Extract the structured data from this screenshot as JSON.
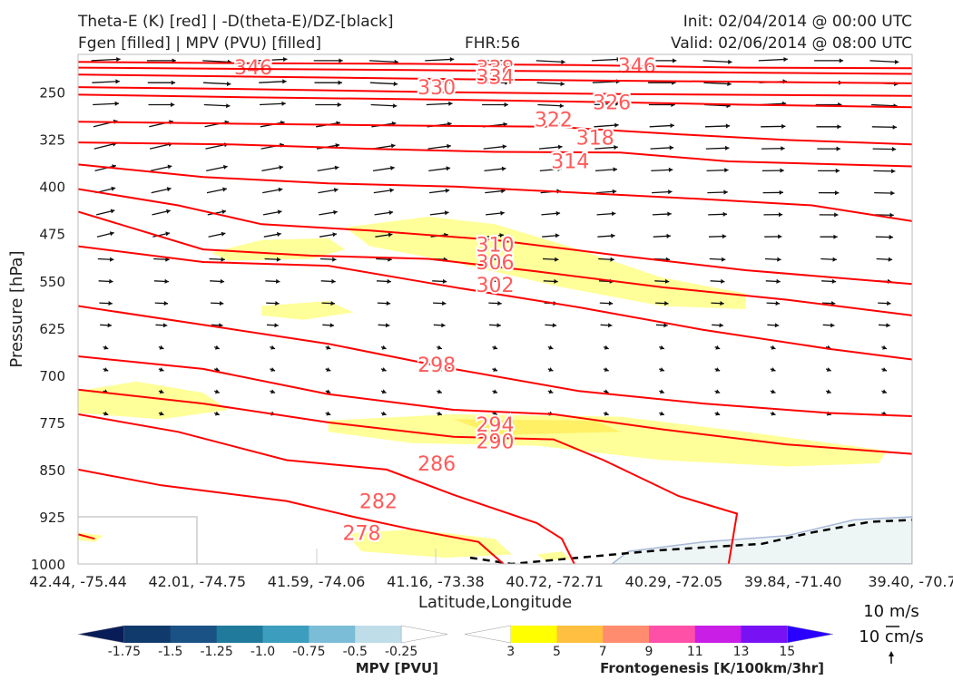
{
  "header": {
    "title_line1": "Theta-E (K) [red] | -D(theta-E)/DZ-[black]",
    "title_line2": "Fgen [filled] | MPV (PVU) [filled]",
    "fhr": "FHR:56",
    "init": "Init: 02/04/2014 @ 00:00 UTC",
    "valid": "Valid: 02/06/2014 @ 08:00 UTC"
  },
  "colors": {
    "theta_e": "#ff0000",
    "theta_e_label": "#ff5a5a",
    "fgen_3": "#ffff99",
    "terrain": "#eef5f5",
    "terrain_edge": "#a8b8d8"
  },
  "chart_data": {
    "type": "cross-section",
    "xlabel": "Latitude,Longitude",
    "ylabel": "Pressure [hPa]",
    "x_ticks": [
      "42.44, -75.44",
      "42.01, -74.75",
      "41.59, -74.06",
      "41.16, -73.38",
      "40.72, -72.71",
      "40.29, -72.05",
      "39.84, -71.40",
      "39.40, -70.7"
    ],
    "y_ticks": [
      250,
      325,
      400,
      475,
      550,
      625,
      700,
      775,
      850,
      925,
      1000
    ],
    "ylim": [
      1000,
      190
    ],
    "theta_e_contours": [
      {
        "value": 346,
        "label": "346",
        "points": [
          [
            0,
            202
          ],
          [
            0.2,
            204
          ],
          [
            0.4,
            205
          ],
          [
            0.6,
            207
          ],
          [
            0.8,
            211
          ],
          [
            1,
            212
          ]
        ],
        "labels_at": [
          [
            0.21,
            210
          ],
          [
            0.67,
            207
          ]
        ]
      },
      {
        "value": 338,
        "label": "338",
        "points": [
          [
            0,
            211
          ],
          [
            0.2,
            213
          ],
          [
            0.4,
            215
          ],
          [
            0.6,
            217
          ],
          [
            0.8,
            219
          ],
          [
            1,
            221
          ]
        ],
        "labels_at": [
          [
            0.5,
            211
          ]
        ]
      },
      {
        "value": 334,
        "label": "334",
        "points": [
          [
            0,
            222
          ],
          [
            0.25,
            226
          ],
          [
            0.5,
            230
          ],
          [
            0.75,
            233
          ],
          [
            1,
            236
          ]
        ],
        "labels_at": [
          [
            0.5,
            225
          ]
        ]
      },
      {
        "value": 330,
        "label": "330",
        "points": [
          [
            0,
            242
          ],
          [
            0.2,
            245
          ],
          [
            0.43,
            250
          ],
          [
            0.65,
            253
          ],
          [
            1,
            256
          ]
        ],
        "labels_at": [
          [
            0.43,
            242
          ]
        ]
      },
      {
        "value": 326,
        "label": "326",
        "points": [
          [
            0,
            254
          ],
          [
            0.2,
            258
          ],
          [
            0.45,
            262
          ],
          [
            0.64,
            266
          ],
          [
            0.8,
            270
          ],
          [
            1,
            274
          ]
        ],
        "labels_at": [
          [
            0.64,
            266
          ]
        ]
      },
      {
        "value": 322,
        "label": "322",
        "points": [
          [
            0,
            297
          ],
          [
            0.18,
            300
          ],
          [
            0.38,
            303
          ],
          [
            0.57,
            305
          ],
          [
            0.72,
            317
          ],
          [
            0.85,
            326
          ],
          [
            1,
            333
          ]
        ],
        "labels_at": [
          [
            0.57,
            293
          ]
        ]
      },
      {
        "value": 318,
        "label": "318",
        "points": [
          [
            0,
            330
          ],
          [
            0.18,
            333
          ],
          [
            0.35,
            340
          ],
          [
            0.5,
            345
          ],
          [
            0.65,
            346
          ],
          [
            0.78,
            360
          ],
          [
            1,
            368
          ]
        ],
        "labels_at": [
          [
            0.62,
            322
          ]
        ]
      },
      {
        "value": 314,
        "label": "314",
        "points": [
          [
            0,
            365
          ],
          [
            0.15,
            385
          ],
          [
            0.3,
            395
          ],
          [
            0.45,
            400
          ],
          [
            0.6,
            410
          ],
          [
            0.75,
            420
          ],
          [
            0.88,
            430
          ],
          [
            1,
            455
          ]
        ],
        "labels_at": [
          [
            0.59,
            359
          ]
        ]
      },
      {
        "value": 310,
        "label": "310",
        "points": [
          [
            0,
            404
          ],
          [
            0.12,
            430
          ],
          [
            0.22,
            460
          ],
          [
            0.35,
            470
          ],
          [
            0.5,
            485
          ],
          [
            0.65,
            510
          ],
          [
            0.8,
            533
          ],
          [
            1,
            555
          ]
        ],
        "labels_at": [
          [
            0.5,
            492
          ]
        ]
      },
      {
        "value": 306,
        "label": "306",
        "points": [
          [
            0,
            440
          ],
          [
            0.15,
            500
          ],
          [
            0.28,
            510
          ],
          [
            0.42,
            515
          ],
          [
            0.55,
            535
          ],
          [
            0.7,
            560
          ],
          [
            0.85,
            580
          ],
          [
            1,
            605
          ]
        ],
        "labels_at": [
          [
            0.5,
            520
          ]
        ]
      },
      {
        "value": 302,
        "label": "302",
        "points": [
          [
            0,
            495
          ],
          [
            0.15,
            520
          ],
          [
            0.3,
            526
          ],
          [
            0.45,
            560
          ],
          [
            0.6,
            592
          ],
          [
            0.75,
            628
          ],
          [
            0.9,
            658
          ],
          [
            1,
            675
          ]
        ],
        "labels_at": [
          [
            0.5,
            556
          ]
        ]
      },
      {
        "value": 298,
        "label": "298",
        "points": [
          [
            0,
            590
          ],
          [
            0.15,
            620
          ],
          [
            0.3,
            650
          ],
          [
            0.45,
            690
          ],
          [
            0.6,
            725
          ],
          [
            0.75,
            745
          ],
          [
            0.9,
            760
          ],
          [
            1,
            765
          ]
        ],
        "labels_at": [
          [
            0.43,
            683
          ]
        ]
      },
      {
        "value": 294,
        "label": "294",
        "points": [
          [
            0,
            670
          ],
          [
            0.15,
            690
          ],
          [
            0.3,
            730
          ],
          [
            0.45,
            755
          ],
          [
            0.57,
            762
          ],
          [
            0.7,
            786
          ],
          [
            0.85,
            810
          ],
          [
            1,
            825
          ]
        ],
        "labels_at": [
          [
            0.5,
            778
          ]
        ]
      },
      {
        "value": 290,
        "label": "290",
        "points": [
          [
            0,
            723
          ],
          [
            0.15,
            745
          ],
          [
            0.3,
            775
          ],
          [
            0.45,
            798
          ],
          [
            0.57,
            802
          ],
          [
            0.63,
            835
          ],
          [
            0.72,
            892
          ],
          [
            0.79,
            920
          ],
          [
            0.78,
            1000
          ]
        ],
        "labels_at": [
          [
            0.5,
            805
          ]
        ]
      },
      {
        "value": 286,
        "label": "286",
        "points": [
          [
            0,
            762
          ],
          [
            0.12,
            790
          ],
          [
            0.25,
            835
          ],
          [
            0.37,
            850
          ],
          [
            0.45,
            890
          ],
          [
            0.55,
            935
          ],
          [
            0.58,
            960
          ],
          [
            0.595,
            1000
          ]
        ],
        "labels_at": [
          [
            0.43,
            840
          ]
        ]
      },
      {
        "value": 282,
        "label": "282",
        "points": [
          [
            0,
            850
          ],
          [
            0.1,
            875
          ],
          [
            0.25,
            900
          ],
          [
            0.33,
            925
          ],
          [
            0.4,
            945
          ],
          [
            0.48,
            965
          ],
          [
            0.51,
            1000
          ]
        ],
        "labels_at": [
          [
            0.36,
            900
          ]
        ]
      },
      {
        "value": 278,
        "label": "278",
        "points": [
          [
            0,
            953
          ],
          [
            0.02,
            960
          ]
        ],
        "labels_at": [
          [
            0.34,
            950
          ]
        ]
      }
    ],
    "mpv_colorbar": {
      "label": "MPV [PVU]",
      "levels": [
        -1.75,
        -1.5,
        -1.25,
        -1.0,
        -0.75,
        -0.5,
        -0.25
      ],
      "tick_labels": [
        "-1.75",
        "-1.5",
        "-1.25",
        "-1.0",
        "-0.75",
        "-0.5",
        "-0.25"
      ],
      "colors": [
        "#081d58",
        "#113a6c",
        "#1a5285",
        "#1f7a9b",
        "#3c9dbf",
        "#7bbdd6",
        "#bedde8",
        "#ffffff"
      ]
    },
    "fgen_colorbar": {
      "label": "Frontogenesis [K/100km/3hr]",
      "levels": [
        3,
        5,
        7,
        9,
        11,
        13,
        15
      ],
      "tick_labels": [
        "3",
        "5",
        "7",
        "9",
        "11",
        "13",
        "15"
      ],
      "colors": [
        "#ffffff",
        "#ffff00",
        "#ffbf40",
        "#ff8c6e",
        "#ff50a8",
        "#c81ee6",
        "#7812f5",
        "#2a00ff"
      ]
    },
    "vector_key": {
      "line1": "10 m/s",
      "line2": "10 cm/s"
    }
  }
}
